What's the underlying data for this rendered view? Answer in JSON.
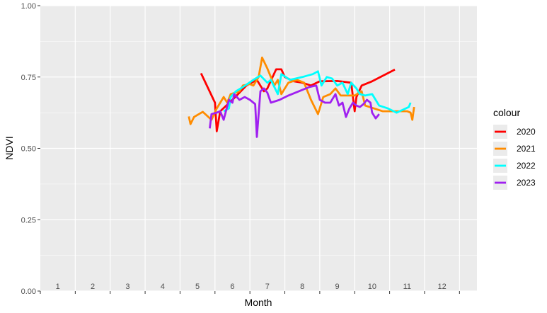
{
  "chart_data": {
    "type": "line",
    "xlabel": "Month",
    "ylabel": "NDVI",
    "xlim": [
      0,
      12.5
    ],
    "ylim": [
      0,
      1
    ],
    "x_ticks": [
      1,
      2,
      3,
      4,
      5,
      6,
      7,
      8,
      9,
      10,
      11,
      12
    ],
    "y_ticks": [
      "0.00",
      "0.25",
      "0.50",
      "0.75",
      "1.00"
    ],
    "grid": true,
    "legend_title": "colour",
    "legend_position": "right",
    "series": [
      {
        "name": "2020",
        "color": "#ff0000",
        "points": [
          [
            4.6,
            0.763
          ],
          [
            5.0,
            0.66
          ],
          [
            5.05,
            0.56
          ],
          [
            5.15,
            0.63
          ],
          [
            5.5,
            0.67
          ],
          [
            5.9,
            0.72
          ],
          [
            6.2,
            0.74
          ],
          [
            6.4,
            0.7
          ],
          [
            6.5,
            0.71
          ],
          [
            6.75,
            0.777
          ],
          [
            6.9,
            0.777
          ],
          [
            7.0,
            0.75
          ],
          [
            7.25,
            0.735
          ],
          [
            7.5,
            0.73
          ],
          [
            7.75,
            0.72
          ],
          [
            8.0,
            0.735
          ],
          [
            8.5,
            0.736
          ],
          [
            8.9,
            0.73
          ],
          [
            9.0,
            0.63
          ],
          [
            9.05,
            0.68
          ],
          [
            9.2,
            0.72
          ],
          [
            9.5,
            0.735
          ],
          [
            10.15,
            0.776
          ]
        ]
      },
      {
        "name": "2021",
        "color": "#ff8c00",
        "points": [
          [
            4.25,
            0.612
          ],
          [
            4.3,
            0.585
          ],
          [
            4.4,
            0.61
          ],
          [
            4.65,
            0.628
          ],
          [
            4.9,
            0.6
          ],
          [
            5.05,
            0.64
          ],
          [
            5.25,
            0.68
          ],
          [
            5.35,
            0.66
          ],
          [
            5.45,
            0.69
          ],
          [
            5.7,
            0.7
          ],
          [
            5.8,
            0.72
          ],
          [
            6.0,
            0.725
          ],
          [
            6.1,
            0.72
          ],
          [
            6.25,
            0.75
          ],
          [
            6.35,
            0.818
          ],
          [
            6.5,
            0.78
          ],
          [
            6.7,
            0.72
          ],
          [
            6.8,
            0.74
          ],
          [
            6.9,
            0.69
          ],
          [
            7.1,
            0.73
          ],
          [
            7.35,
            0.74
          ],
          [
            7.55,
            0.73
          ],
          [
            7.75,
            0.67
          ],
          [
            7.95,
            0.62
          ],
          [
            8.1,
            0.68
          ],
          [
            8.3,
            0.69
          ],
          [
            8.45,
            0.71
          ],
          [
            8.6,
            0.685
          ],
          [
            9.0,
            0.685
          ],
          [
            9.2,
            0.7
          ],
          [
            9.3,
            0.65
          ],
          [
            9.55,
            0.64
          ],
          [
            9.8,
            0.63
          ],
          [
            10.5,
            0.63
          ],
          [
            10.6,
            0.625
          ],
          [
            10.65,
            0.6
          ],
          [
            10.7,
            0.645
          ]
        ]
      },
      {
        "name": "2022",
        "color": "#00ffff",
        "points": [
          [
            5.25,
            0.63
          ],
          [
            5.4,
            0.64
          ],
          [
            5.45,
            0.68
          ],
          [
            5.6,
            0.7
          ],
          [
            5.8,
            0.715
          ],
          [
            6.1,
            0.74
          ],
          [
            6.3,
            0.755
          ],
          [
            6.5,
            0.73
          ],
          [
            6.6,
            0.74
          ],
          [
            6.8,
            0.69
          ],
          [
            6.9,
            0.76
          ],
          [
            7.15,
            0.74
          ],
          [
            7.5,
            0.75
          ],
          [
            7.8,
            0.76
          ],
          [
            7.95,
            0.77
          ],
          [
            8.05,
            0.72
          ],
          [
            8.2,
            0.75
          ],
          [
            8.35,
            0.745
          ],
          [
            8.5,
            0.72
          ],
          [
            8.65,
            0.73
          ],
          [
            8.8,
            0.69
          ],
          [
            8.9,
            0.73
          ],
          [
            9.05,
            0.71
          ],
          [
            9.15,
            0.69
          ],
          [
            9.3,
            0.685
          ],
          [
            9.5,
            0.69
          ],
          [
            9.7,
            0.65
          ],
          [
            9.95,
            0.64
          ],
          [
            10.2,
            0.625
          ],
          [
            10.55,
            0.645
          ],
          [
            10.6,
            0.66
          ]
        ]
      },
      {
        "name": "2023",
        "color": "#a020f0",
        "points": [
          [
            4.85,
            0.57
          ],
          [
            4.9,
            0.62
          ],
          [
            5.05,
            0.625
          ],
          [
            5.15,
            0.63
          ],
          [
            5.25,
            0.6
          ],
          [
            5.4,
            0.67
          ],
          [
            5.5,
            0.66
          ],
          [
            5.55,
            0.69
          ],
          [
            5.7,
            0.67
          ],
          [
            5.85,
            0.68
          ],
          [
            6.0,
            0.67
          ],
          [
            6.15,
            0.655
          ],
          [
            6.2,
            0.54
          ],
          [
            6.3,
            0.7
          ],
          [
            6.4,
            0.71
          ],
          [
            6.5,
            0.695
          ],
          [
            6.6,
            0.66
          ],
          [
            6.85,
            0.67
          ],
          [
            7.1,
            0.685
          ],
          [
            7.4,
            0.7
          ],
          [
            7.7,
            0.715
          ],
          [
            7.9,
            0.72
          ],
          [
            8.0,
            0.67
          ],
          [
            8.15,
            0.66
          ],
          [
            8.3,
            0.66
          ],
          [
            8.45,
            0.69
          ],
          [
            8.55,
            0.65
          ],
          [
            8.65,
            0.66
          ],
          [
            8.75,
            0.61
          ],
          [
            8.85,
            0.64
          ],
          [
            8.95,
            0.66
          ],
          [
            9.05,
            0.65
          ],
          [
            9.15,
            0.645
          ],
          [
            9.25,
            0.655
          ],
          [
            9.35,
            0.67
          ],
          [
            9.45,
            0.66
          ],
          [
            9.5,
            0.625
          ],
          [
            9.6,
            0.605
          ],
          [
            9.7,
            0.62
          ]
        ]
      }
    ]
  }
}
